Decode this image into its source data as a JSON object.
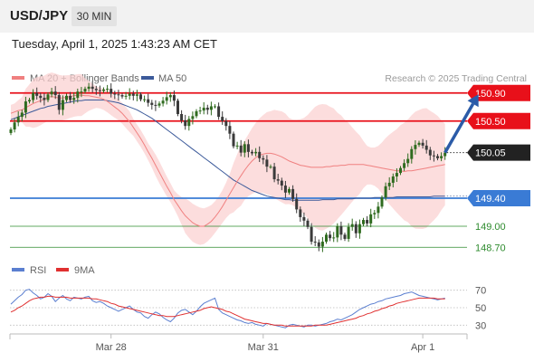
{
  "header": {
    "symbol": "USD/JPY",
    "timeframe": "30 MIN",
    "datetime": "Tuesday, April 1, 2025 1:43:23 AM CET"
  },
  "colors": {
    "resistance": "#e8101a",
    "support": "#3a7bd5",
    "target": "#2e8b2e",
    "candle_bull": "#2f6b1f",
    "candle_bear": "#3a3a3a",
    "ma20": "#f08080",
    "bands_fill": "#fbd2d2",
    "ma50": "#3c5a9a",
    "arrow": "#2b5ba8",
    "rsi": "#5b7fd0",
    "rsi_ma": "#e03030"
  },
  "chart_data": [
    {
      "type": "candlestick",
      "title": "USD/JPY 30 MIN",
      "legend": [
        {
          "name": "MA 20 + Bollinger Bands",
          "color": "#f08080"
        },
        {
          "name": "MA 50",
          "color": "#3c5a9a"
        }
      ],
      "attribution": "Research © 2025 Trading Central",
      "ylim": [
        148.6,
        151.0
      ],
      "x_ticks": [
        {
          "label": "Mar 28",
          "bar": 27
        },
        {
          "label": "Mar 31",
          "bar": 68
        },
        {
          "label": "Apr 1",
          "bar": 111
        }
      ],
      "levels": [
        {
          "label": "150.90",
          "value": 150.9,
          "kind": "resistance"
        },
        {
          "label": "150.50",
          "value": 150.5,
          "kind": "resistance"
        },
        {
          "label": "149.40",
          "value": 149.4,
          "kind": "support"
        },
        {
          "label": "149.00",
          "value": 149.0,
          "kind": "target"
        },
        {
          "label": "148.70",
          "value": 148.7,
          "kind": "target"
        }
      ],
      "last_price": {
        "label": "150.05",
        "value": 150.05
      },
      "expected_path": {
        "from_bar": 117,
        "from_value": 150.05,
        "to_bar": 126,
        "to_value": 150.88
      },
      "close": [
        150.38,
        150.48,
        150.56,
        150.62,
        150.78,
        150.8,
        150.9,
        150.86,
        150.83,
        150.8,
        150.88,
        150.92,
        150.87,
        150.66,
        150.8,
        150.86,
        150.8,
        150.83,
        150.92,
        150.92,
        150.96,
        150.99,
        150.96,
        150.94,
        150.93,
        150.95,
        150.96,
        150.89,
        150.88,
        150.87,
        150.85,
        150.86,
        150.89,
        150.86,
        150.88,
        150.81,
        150.81,
        150.76,
        150.73,
        150.72,
        150.75,
        150.79,
        150.84,
        150.87,
        150.79,
        150.6,
        150.51,
        150.43,
        150.53,
        150.57,
        150.64,
        150.65,
        150.69,
        150.66,
        150.71,
        150.71,
        150.56,
        150.5,
        150.43,
        150.32,
        150.14,
        150.15,
        150.05,
        150.17,
        150.06,
        150.04,
        150.06,
        149.97,
        149.95,
        149.85,
        149.85,
        149.67,
        149.65,
        149.58,
        149.48,
        149.53,
        149.39,
        149.24,
        149.13,
        149.08,
        148.99,
        148.78,
        148.77,
        148.71,
        148.78,
        148.88,
        148.83,
        148.84,
        149.0,
        148.88,
        148.82,
        148.99,
        149.03,
        148.9,
        149.03,
        149.09,
        149.04,
        149.17,
        149.19,
        149.28,
        149.41,
        149.57,
        149.62,
        149.71,
        149.76,
        149.83,
        149.9,
        149.96,
        150.1,
        150.16,
        150.19,
        150.15,
        150.09,
        150.01,
        150.0,
        149.97,
        150.0,
        150.05
      ],
      "ma20": [
        150.61,
        150.63,
        150.65,
        150.66,
        150.69,
        150.72,
        150.75,
        150.77,
        150.79,
        150.81,
        150.84,
        150.85,
        150.84,
        150.83,
        150.83,
        150.84,
        150.85,
        150.86,
        150.87,
        150.87,
        150.86,
        150.86,
        150.85,
        150.84,
        150.83,
        150.81,
        150.78,
        150.74,
        150.7,
        150.66,
        150.61,
        150.55,
        150.49,
        150.41,
        150.33,
        150.25,
        150.16,
        150.06,
        149.97,
        149.87,
        149.77,
        149.67,
        149.57,
        149.48,
        149.38,
        149.3,
        149.22,
        149.15,
        149.1,
        149.05,
        149.02,
        149.0,
        149.0,
        149.03,
        149.07,
        149.13,
        149.2,
        149.28,
        149.37,
        149.46,
        149.55,
        149.64,
        149.72,
        149.8,
        149.87,
        149.93,
        149.98,
        150.01,
        150.03,
        150.04,
        150.04,
        150.03,
        150.01,
        149.99,
        149.96,
        149.93,
        149.91,
        149.89,
        149.87,
        149.86,
        149.85,
        149.84,
        149.84,
        149.84,
        149.84,
        149.85,
        149.85,
        149.86,
        149.86,
        149.87,
        149.87,
        149.88,
        149.88,
        149.88,
        149.88,
        149.88,
        149.87,
        149.86,
        149.85,
        149.84,
        149.83,
        149.82,
        149.81,
        149.8,
        149.79,
        149.79,
        149.78,
        149.79,
        149.79,
        149.8,
        149.81,
        149.82,
        149.83,
        149.84,
        149.85,
        149.86,
        149.87,
        149.88
      ],
      "ma50": [
        150.52,
        150.54,
        150.56,
        150.58,
        150.6,
        150.62,
        150.64,
        150.66,
        150.68,
        150.69,
        150.71,
        150.72,
        150.73,
        150.74,
        150.75,
        150.76,
        150.77,
        150.78,
        150.79,
        150.79,
        150.8,
        150.8,
        150.8,
        150.8,
        150.8,
        150.8,
        150.79,
        150.78,
        150.77,
        150.76,
        150.74,
        150.72,
        150.7,
        150.68,
        150.66,
        150.63,
        150.6,
        150.57,
        150.54,
        150.5,
        150.46,
        150.42,
        150.38,
        150.34,
        150.3,
        150.26,
        150.22,
        150.18,
        150.14,
        150.1,
        150.06,
        150.02,
        149.98,
        149.94,
        149.9,
        149.86,
        149.82,
        149.78,
        149.74,
        149.7,
        149.66,
        149.63,
        149.6,
        149.57,
        149.54,
        149.51,
        149.49,
        149.47,
        149.45,
        149.43,
        149.42,
        149.41,
        149.4,
        149.39,
        149.38,
        149.38,
        149.37,
        149.37,
        149.37,
        149.37,
        149.37,
        149.37,
        149.37,
        149.37,
        149.38,
        149.38,
        149.38,
        149.38,
        149.39,
        149.39,
        149.39,
        149.39,
        149.39,
        149.4,
        149.4,
        149.4,
        149.4,
        149.4,
        149.41,
        149.41,
        149.41,
        149.41,
        149.41,
        149.41,
        149.42,
        149.42,
        149.42,
        149.42,
        149.42,
        149.42,
        149.42,
        149.42,
        149.42,
        149.42,
        149.43,
        149.43,
        149.43,
        149.43
      ]
    },
    {
      "type": "line",
      "title": "RSI",
      "legend": [
        {
          "name": "RSI",
          "color": "#5b7fd0"
        },
        {
          "name": "9MA",
          "color": "#e03030"
        }
      ],
      "ylim": [
        20,
        80
      ],
      "y_ticks": [
        70,
        50,
        30
      ],
      "series": [
        {
          "name": "RSI",
          "values": [
            54,
            58,
            62,
            65,
            70,
            71,
            67,
            64,
            60,
            62,
            66,
            63,
            57,
            61,
            64,
            60,
            58,
            62,
            61,
            60,
            62,
            63,
            58,
            56,
            57,
            55,
            52,
            50,
            48,
            46,
            48,
            50,
            52,
            48,
            45,
            44,
            40,
            38,
            42,
            45,
            43,
            39,
            36,
            34,
            38,
            44,
            47,
            48,
            45,
            42,
            46,
            51,
            55,
            57,
            59,
            61,
            48,
            44,
            42,
            40,
            38,
            36,
            35,
            33,
            32,
            33,
            31,
            30,
            29,
            32,
            31,
            30,
            29,
            28,
            27,
            30,
            31,
            30,
            29,
            28,
            30,
            30,
            29,
            30,
            31,
            32,
            34,
            35,
            37,
            36,
            38,
            40,
            42,
            45,
            48,
            50,
            52,
            54,
            55,
            57,
            58,
            60,
            61,
            62,
            63,
            64,
            66,
            67,
            68,
            66,
            64,
            63,
            62,
            61,
            60,
            59,
            60,
            61
          ]
        },
        {
          "name": "9MA",
          "values": [
            45,
            47,
            50,
            52,
            55,
            58,
            60,
            61,
            62,
            62,
            63,
            63,
            62,
            62,
            62,
            62,
            61,
            61,
            61,
            61,
            61,
            61,
            60,
            60,
            59,
            58,
            57,
            55,
            54,
            52,
            51,
            50,
            49,
            48,
            47,
            46,
            45,
            44,
            43,
            42,
            41,
            41,
            40,
            40,
            40,
            41,
            42,
            43,
            44,
            45,
            46,
            47,
            49,
            50,
            51,
            50,
            49,
            48,
            46,
            45,
            43,
            41,
            39,
            37,
            36,
            35,
            34,
            33,
            32,
            32,
            31,
            30,
            30,
            30,
            29,
            29,
            29,
            29,
            29,
            29,
            29,
            29,
            30,
            30,
            30,
            30,
            31,
            32,
            33,
            34,
            35,
            36,
            37,
            38,
            40,
            41,
            43,
            44,
            46,
            47,
            49,
            50,
            52,
            53,
            55,
            56,
            57,
            58,
            59,
            60,
            61,
            61,
            61,
            61,
            61,
            60,
            60,
            60
          ]
        }
      ]
    }
  ]
}
